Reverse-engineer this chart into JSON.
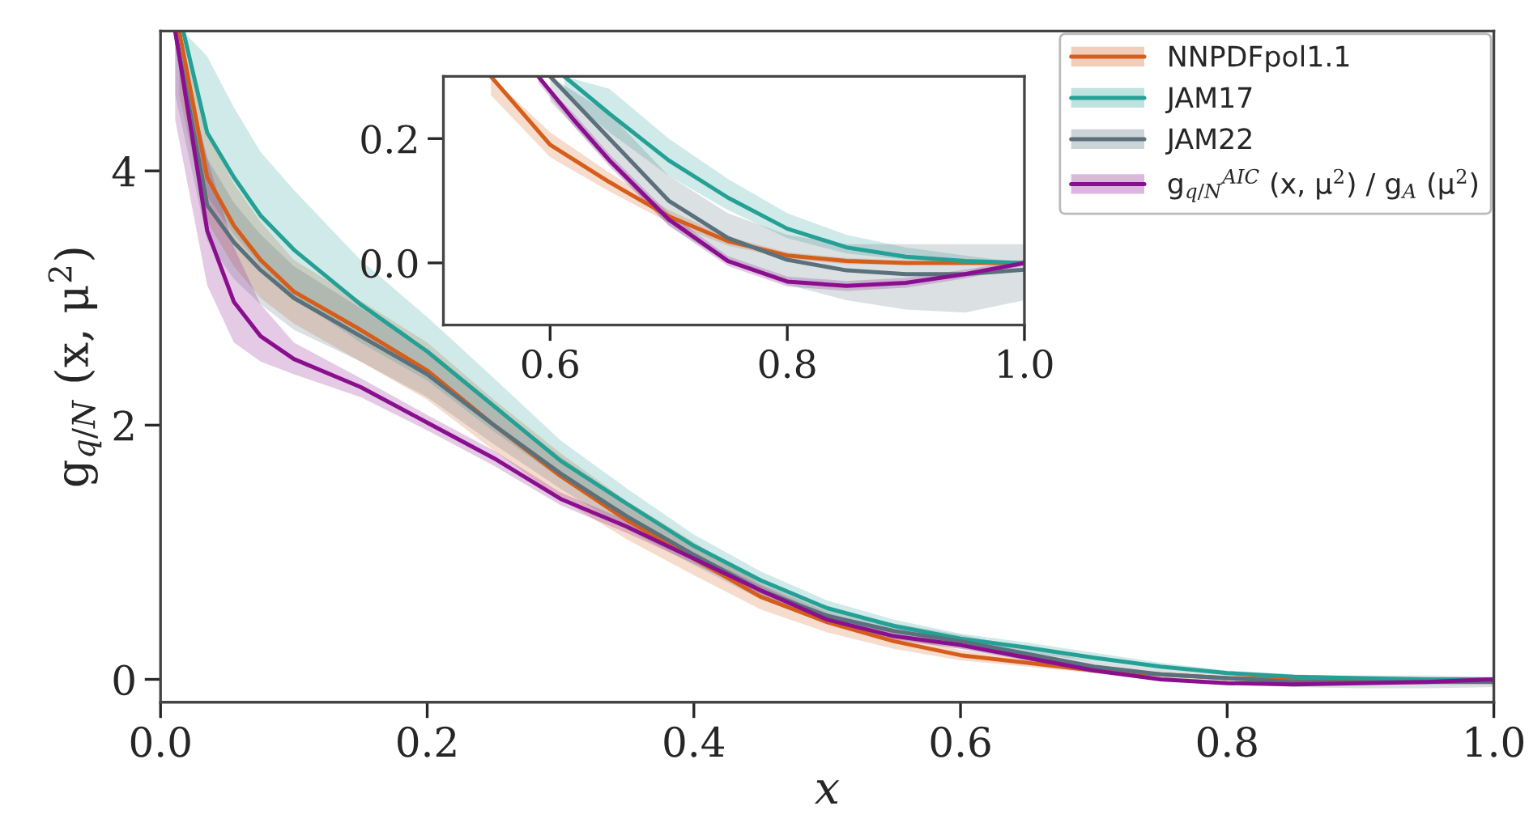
{
  "chart_data": [
    {
      "type": "line",
      "xlabel": "x",
      "ylabel": "g$_{q/N}$ (x, μ$^{2}$)",
      "xlim": [
        0,
        1.0
      ],
      "ylim": [
        -0.18,
        5.1
      ],
      "xticks": [
        {
          "value": 0,
          "label": "0.0"
        },
        {
          "value": 0.2,
          "label": "0.2"
        },
        {
          "value": 0.4,
          "label": "0.4"
        },
        {
          "value": 0.6,
          "label": "0.6"
        },
        {
          "value": 0.8,
          "label": "0.8"
        },
        {
          "value": 1.0,
          "label": "1.0"
        }
      ],
      "yticks": [
        0,
        2,
        4
      ],
      "legend": "top right",
      "grid": false,
      "series": [
        {
          "name": "NNPDFpol1.1",
          "color": "#d55e1b",
          "x": [
            0.014,
            0.035,
            0.055,
            0.075,
            0.1,
            0.15,
            0.2,
            0.25,
            0.3,
            0.35,
            0.4,
            0.45,
            0.5,
            0.55,
            0.6,
            0.65,
            0.7,
            0.75,
            0.8,
            0.85,
            0.9,
            0.95,
            1.0
          ],
          "values": [
            5.1,
            3.95,
            3.57,
            3.3,
            3.05,
            2.75,
            2.43,
            2.0,
            1.6,
            1.25,
            0.95,
            0.65,
            0.45,
            0.3,
            0.19,
            0.13,
            0.07,
            0.04,
            0.01,
            0.0,
            0.0,
            null,
            null
          ],
          "lower": [
            4.6,
            3.6,
            3.25,
            3.0,
            2.8,
            2.5,
            2.2,
            1.8,
            1.42,
            1.1,
            0.82,
            0.55,
            0.37,
            0.24,
            0.15,
            0.1,
            0.05,
            0.02,
            0.0,
            -0.01,
            -0.01,
            -0.01,
            0.0
          ],
          "upper": [
            5.1,
            4.3,
            3.9,
            3.6,
            3.3,
            2.98,
            2.65,
            2.2,
            1.78,
            1.4,
            1.08,
            0.75,
            0.53,
            0.36,
            0.23,
            0.16,
            0.09,
            0.05,
            0.02,
            0.01,
            0.01,
            0.01,
            0.0
          ]
        },
        {
          "name": "JAM17",
          "color": "#25a095",
          "x": [
            0.017,
            0.035,
            0.055,
            0.075,
            0.1,
            0.15,
            0.2,
            0.25,
            0.3,
            0.35,
            0.4,
            0.45,
            0.5,
            0.55,
            0.6,
            0.65,
            0.7,
            0.75,
            0.8,
            0.85,
            0.9,
            0.95,
            1.0
          ],
          "values": [
            5.1,
            4.3,
            3.95,
            3.65,
            3.38,
            2.95,
            2.58,
            2.15,
            1.72,
            1.38,
            1.05,
            0.78,
            0.56,
            0.42,
            0.32,
            0.25,
            0.17,
            0.1,
            0.05,
            0.02,
            0.01,
            0.0,
            0.0
          ],
          "lower": [
            4.6,
            3.8,
            3.5,
            3.25,
            3.0,
            2.65,
            2.35,
            1.95,
            1.58,
            1.26,
            0.96,
            0.71,
            0.5,
            0.37,
            0.28,
            0.21,
            0.14,
            0.08,
            0.04,
            0.01,
            0.0,
            0.0,
            0.0
          ],
          "upper": [
            5.1,
            4.9,
            4.5,
            4.15,
            3.85,
            3.3,
            2.85,
            2.37,
            1.88,
            1.5,
            1.14,
            0.85,
            0.62,
            0.47,
            0.36,
            0.29,
            0.21,
            0.13,
            0.07,
            0.04,
            0.02,
            0.01,
            0.0
          ]
        },
        {
          "name": "JAM22",
          "color": "#5a717c",
          "x": [
            0.011,
            0.035,
            0.055,
            0.075,
            0.1,
            0.15,
            0.2,
            0.25,
            0.3,
            0.35,
            0.4,
            0.45,
            0.5,
            0.55,
            0.6,
            0.65,
            0.7,
            0.75,
            0.8,
            0.85,
            0.9,
            0.95,
            1.0
          ],
          "values": [
            5.1,
            3.73,
            3.44,
            3.22,
            3.0,
            2.7,
            2.4,
            2.0,
            1.62,
            1.28,
            0.98,
            0.7,
            0.5,
            0.38,
            0.3,
            0.2,
            0.1,
            0.04,
            0.01,
            -0.02,
            -0.02,
            -0.02,
            -0.02
          ],
          "lower": [
            4.6,
            3.45,
            3.15,
            2.95,
            2.75,
            2.5,
            2.22,
            1.85,
            1.5,
            1.18,
            0.9,
            0.63,
            0.44,
            0.32,
            0.24,
            0.15,
            0.06,
            0.0,
            -0.03,
            -0.06,
            -0.07,
            -0.07,
            -0.06
          ],
          "upper": [
            5.1,
            4.1,
            3.75,
            3.5,
            3.25,
            2.92,
            2.58,
            2.15,
            1.75,
            1.38,
            1.06,
            0.77,
            0.56,
            0.44,
            0.35,
            0.25,
            0.14,
            0.08,
            0.04,
            0.03,
            0.03,
            0.03,
            0.02
          ]
        },
        {
          "name": "g$_{q/N}$$^{AIC}$ (x, μ$^{2}$) / g$_{A}$ (μ$^{2}$)",
          "color": "#8a0f8f",
          "x": [
            0.011,
            0.035,
            0.055,
            0.075,
            0.1,
            0.15,
            0.2,
            0.25,
            0.3,
            0.35,
            0.4,
            0.45,
            0.5,
            0.55,
            0.6,
            0.65,
            0.7,
            0.75,
            0.8,
            0.85,
            0.9,
            0.95,
            1.0
          ],
          "values": [
            5.1,
            3.53,
            2.97,
            2.7,
            2.52,
            2.3,
            2.02,
            1.74,
            1.42,
            1.2,
            0.95,
            0.7,
            0.47,
            0.34,
            0.27,
            0.17,
            0.07,
            0.0,
            -0.03,
            -0.04,
            -0.03,
            -0.02,
            0.0
          ],
          "lower": [
            4.4,
            3.1,
            2.65,
            2.5,
            2.4,
            2.22,
            1.96,
            1.68,
            1.37,
            1.15,
            0.91,
            0.66,
            0.44,
            0.31,
            0.24,
            0.15,
            0.05,
            -0.01,
            -0.04,
            -0.05,
            -0.04,
            -0.025,
            -0.005
          ],
          "upper": [
            5.1,
            4.1,
            3.4,
            2.95,
            2.65,
            2.37,
            2.08,
            1.8,
            1.47,
            1.25,
            0.99,
            0.74,
            0.5,
            0.37,
            0.3,
            0.19,
            0.09,
            0.01,
            -0.02,
            -0.03,
            -0.02,
            -0.015,
            0.005
          ]
        }
      ]
    },
    {
      "type": "line",
      "xlim": [
        0.51,
        1.0
      ],
      "ylim": [
        -0.1,
        0.3
      ],
      "xticks": [
        {
          "value": 0.6,
          "label": "0.6"
        },
        {
          "value": 0.8,
          "label": "0.8"
        },
        {
          "value": 1.0,
          "label": "1.0"
        }
      ],
      "yticks": [
        {
          "value": 0.0,
          "label": "0.0"
        },
        {
          "value": 0.2,
          "label": "0.2"
        }
      ],
      "grid": false,
      "series": [
        {
          "color": "#d55e1b",
          "x": [
            0.55,
            0.6,
            0.65,
            0.7,
            0.75,
            0.8,
            0.85,
            0.9,
            0.95,
            1.0
          ],
          "values": [
            0.3,
            0.19,
            0.13,
            0.075,
            0.035,
            0.012,
            0.003,
            0.0,
            0.0,
            0.0
          ],
          "lower": [
            0.27,
            0.17,
            0.115,
            0.065,
            0.028,
            0.007,
            -0.002,
            -0.003,
            -0.002,
            0.0
          ],
          "upper": [
            0.3,
            0.21,
            0.145,
            0.085,
            0.042,
            0.017,
            0.008,
            0.004,
            0.002,
            0.0
          ]
        },
        {
          "color": "#25a095",
          "x": [
            0.612,
            0.65,
            0.7,
            0.75,
            0.8,
            0.85,
            0.9,
            0.95,
            1.0
          ],
          "values": [
            0.3,
            0.24,
            0.165,
            0.105,
            0.055,
            0.025,
            0.01,
            0.003,
            0.0
          ],
          "lower": [
            0.27,
            0.21,
            0.14,
            0.085,
            0.04,
            0.015,
            0.005,
            0.0,
            0.0
          ],
          "upper": [
            0.3,
            0.28,
            0.2,
            0.135,
            0.08,
            0.045,
            0.025,
            0.012,
            0.0
          ]
        },
        {
          "color": "#5a717c",
          "x": [
            0.6,
            0.65,
            0.7,
            0.75,
            0.8,
            0.85,
            0.9,
            0.95,
            1.0
          ],
          "values": [
            0.3,
            0.2,
            0.1,
            0.04,
            0.005,
            -0.012,
            -0.018,
            -0.018,
            -0.011
          ],
          "lower": [
            0.26,
            0.16,
            0.06,
            0.0,
            -0.035,
            -0.06,
            -0.075,
            -0.08,
            -0.06
          ],
          "upper": [
            0.3,
            0.24,
            0.14,
            0.08,
            0.045,
            0.03,
            0.03,
            0.03,
            0.03
          ]
        },
        {
          "color": "#8a0f8f",
          "x": [
            0.59,
            0.62,
            0.65,
            0.7,
            0.75,
            0.8,
            0.85,
            0.9,
            0.95,
            1.0
          ],
          "values": [
            0.3,
            0.23,
            0.165,
            0.07,
            0.003,
            -0.03,
            -0.037,
            -0.032,
            -0.018,
            0.0
          ],
          "lower": [
            0.29,
            0.22,
            0.155,
            0.06,
            -0.005,
            -0.038,
            -0.045,
            -0.04,
            -0.025,
            -0.005
          ],
          "upper": [
            0.3,
            0.24,
            0.175,
            0.08,
            0.011,
            -0.022,
            -0.029,
            -0.024,
            -0.011,
            0.005
          ]
        }
      ]
    }
  ]
}
